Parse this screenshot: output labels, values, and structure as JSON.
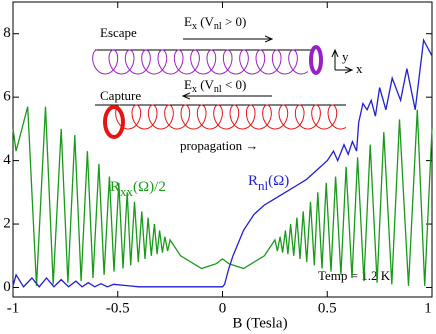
{
  "chart_data": {
    "type": "line",
    "xlabel": "B (Tesla)",
    "xlim": [
      -1,
      1
    ],
    "ylim": [
      -0.3,
      9
    ],
    "xticks": [
      -1,
      -0.5,
      0,
      0.5,
      1
    ],
    "yticks": [
      0,
      2,
      4,
      6,
      8
    ],
    "series": [
      {
        "label_parts": [
          "R",
          "xx",
          "(Ω)/2"
        ],
        "color": "#1a9a1a",
        "x": [
          -1,
          -0.985,
          -0.93,
          -0.888,
          -0.845,
          -0.808,
          -0.77,
          -0.738,
          -0.705,
          -0.675,
          -0.645,
          -0.618,
          -0.59,
          -0.565,
          -0.54,
          -0.518,
          -0.495,
          -0.475,
          -0.455,
          -0.438,
          -0.42,
          -0.402,
          -0.385,
          -0.37,
          -0.355,
          -0.34,
          -0.325,
          -0.312,
          -0.3,
          -0.287,
          -0.275,
          -0.262,
          -0.25,
          -0.2,
          -0.1,
          -0.03,
          0,
          0.03,
          0.1,
          0.2,
          0.25,
          0.262,
          0.275,
          0.287,
          0.3,
          0.312,
          0.325,
          0.34,
          0.355,
          0.37,
          0.385,
          0.402,
          0.42,
          0.438,
          0.455,
          0.475,
          0.495,
          0.518,
          0.54,
          0.565,
          0.59,
          0.618,
          0.645,
          0.675,
          0.705,
          0.738,
          0.77,
          0.808,
          0.845,
          0.888,
          0.93,
          0.965,
          1
        ],
        "values": [
          5.0,
          4.3,
          5.7,
          0.05,
          5.7,
          0.1,
          5.0,
          0.15,
          4.8,
          0.2,
          4.3,
          0.3,
          3.9,
          0.4,
          3.5,
          0.5,
          3.3,
          0.6,
          3.0,
          0.7,
          2.7,
          0.8,
          2.4,
          0.9,
          2.2,
          1.0,
          2.0,
          1.05,
          1.8,
          1.1,
          1.6,
          1.15,
          1.5,
          1.0,
          0.6,
          0.75,
          0.9,
          0.75,
          0.6,
          1.0,
          1.5,
          1.15,
          1.6,
          1.1,
          1.8,
          1.05,
          2.0,
          1.0,
          2.2,
          0.9,
          2.4,
          0.8,
          2.7,
          0.7,
          3.0,
          0.6,
          3.3,
          0.5,
          3.5,
          0.4,
          3.8,
          0.3,
          4.1,
          0.2,
          4.5,
          0.15,
          4.9,
          0.1,
          5.3,
          0.05,
          5.6,
          0.05,
          5.0
        ]
      },
      {
        "label_parts": [
          "R",
          "nl",
          "(Ω)"
        ],
        "color": "#1f1fd6",
        "x": [
          -1,
          -0.985,
          -0.95,
          -0.91,
          -0.875,
          -0.84,
          -0.805,
          -0.77,
          -0.735,
          -0.7,
          -0.67,
          -0.64,
          -0.61,
          -0.58,
          -0.55,
          -0.52,
          -0.4,
          -0.2,
          0,
          0.01,
          0.03,
          0.05,
          0.1,
          0.15,
          0.2,
          0.25,
          0.3,
          0.35,
          0.4,
          0.45,
          0.5,
          0.53,
          0.55,
          0.58,
          0.6,
          0.62,
          0.64,
          0.65,
          0.67,
          0.69,
          0.71,
          0.73,
          0.75,
          0.78,
          0.81,
          0.85,
          0.88,
          0.92,
          0.96,
          1
        ],
        "values": [
          0.05,
          0.4,
          0.02,
          0.3,
          0.02,
          0.3,
          0.02,
          0.25,
          0.02,
          0.2,
          0.02,
          0.15,
          0.02,
          0.12,
          0.02,
          0.1,
          0.02,
          0.02,
          0.02,
          0.1,
          0.6,
          1.0,
          1.8,
          2.3,
          2.6,
          2.8,
          3.0,
          3.2,
          3.4,
          3.7,
          4.0,
          4.3,
          4.0,
          4.5,
          4.2,
          4.6,
          4.3,
          5.2,
          5.8,
          5.6,
          5.9,
          5.4,
          6.3,
          5.6,
          6.6,
          5.9,
          6.9,
          5.6,
          7.8,
          7.3
        ]
      }
    ],
    "annotations": {
      "escape": "Escape",
      "capture": "Capture",
      "propagation": "propagation →",
      "temp": "Temp = 1.2 K",
      "axis_y": "y",
      "axis_x": "x",
      "escape_field": [
        "E",
        "x",
        "  (V",
        "nl",
        " > 0)"
      ],
      "capture_field": [
        "E",
        "x",
        "  (V",
        "nl",
        " < 0)"
      ]
    }
  }
}
